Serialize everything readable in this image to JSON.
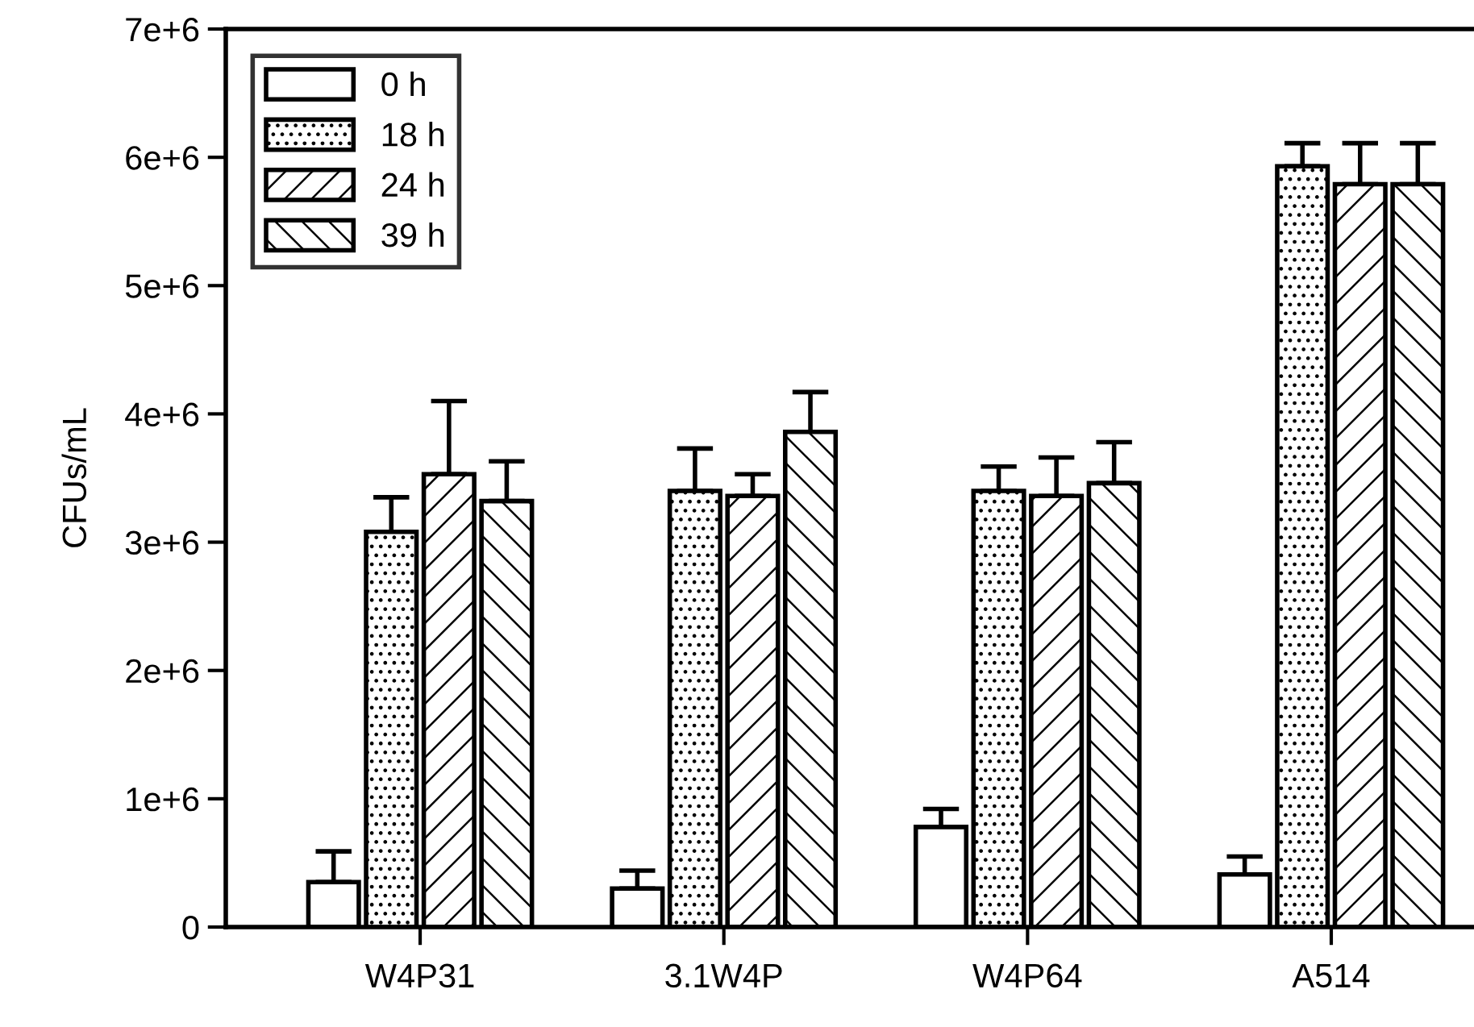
{
  "chart_data": {
    "type": "bar",
    "ylabel": "CFUs/mL",
    "categories": [
      "W4P31",
      "3.1W4P",
      "W4P64",
      "A514"
    ],
    "series": [
      {
        "name": "0 h",
        "color": "#ffffff",
        "values": [
          350000,
          300000,
          780000,
          410000
        ],
        "errors": [
          [
            350000,
            590000
          ],
          [
            300000,
            440000
          ],
          [
            780000,
            920000
          ],
          [
            410000,
            550000
          ]
        ]
      },
      {
        "name": "18 h",
        "values": [
          3080000,
          3400000,
          3400000,
          5930000
        ],
        "errors": [
          [
            3080000,
            3350000
          ],
          [
            3400000,
            3730000
          ],
          [
            3400000,
            3590000
          ],
          [
            5930000,
            6110000
          ]
        ]
      },
      {
        "name": "24 h",
        "values": [
          3530000,
          3360000,
          3360000,
          5790000
        ],
        "errors": [
          [
            3530000,
            4100000
          ],
          [
            3360000,
            3530000
          ],
          [
            3360000,
            3660000
          ],
          [
            5790000,
            6110000
          ]
        ]
      },
      {
        "name": "39 h",
        "values": [
          3320000,
          3860000,
          3460000,
          5790000
        ],
        "errors": [
          [
            3320000,
            3630000
          ],
          [
            3860000,
            4170000
          ],
          [
            3460000,
            3780000
          ],
          [
            5790000,
            6110000
          ]
        ]
      }
    ],
    "ylim": [
      0,
      7000000
    ],
    "yticks": [
      {
        "value": 0,
        "label": "0"
      },
      {
        "value": 1000000,
        "label": "1e+6"
      },
      {
        "value": 2000000,
        "label": "2e+6"
      },
      {
        "value": 3000000,
        "label": "3e+6"
      },
      {
        "value": 4000000,
        "label": "4e+6"
      },
      {
        "value": 5000000,
        "label": "5e+6"
      },
      {
        "value": 6000000,
        "label": "6e+6"
      },
      {
        "value": 7000000,
        "label": "7e+6"
      }
    ],
    "grid": false,
    "legend": "top left"
  }
}
